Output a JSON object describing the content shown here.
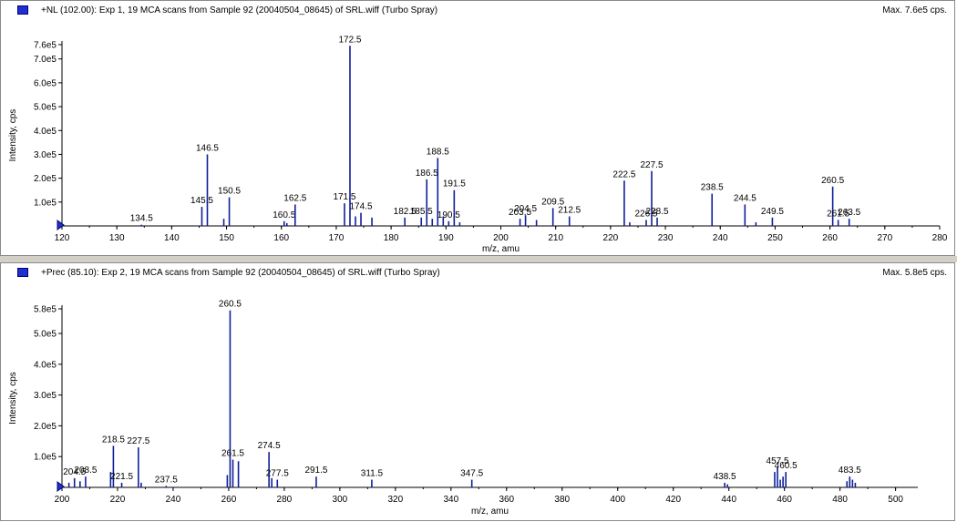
{
  "chart_data": [
    {
      "type": "bar",
      "title": "+NL (102.00): Exp 1, 19 MCA scans from Sample 92 (20040504_08645) of SRL.wiff (Turbo Spray)",
      "max_label": "Max. 7.6e5 cps.",
      "xlabel": "m/z, amu",
      "ylabel": "Intensity, cps",
      "xlim": [
        120,
        280
      ],
      "ylim": [
        0,
        760000
      ],
      "x_ticks": [
        120,
        130,
        140,
        150,
        160,
        170,
        180,
        190,
        200,
        210,
        220,
        230,
        240,
        250,
        260,
        270,
        280
      ],
      "y_ticks": [
        {
          "value": 100000,
          "label": "1.0e5"
        },
        {
          "value": 200000,
          "label": "2.0e5"
        },
        {
          "value": 300000,
          "label": "3.0e5"
        },
        {
          "value": 400000,
          "label": "4.0e5"
        },
        {
          "value": 500000,
          "label": "5.0e5"
        },
        {
          "value": 600000,
          "label": "6.0e5"
        },
        {
          "value": 700000,
          "label": "7.0e5"
        },
        {
          "value": 760000,
          "label": "7.6e5"
        }
      ],
      "peaks": [
        {
          "x": 134.5,
          "y": 5000,
          "label": "134.5"
        },
        {
          "x": 145.5,
          "y": 80000,
          "label": "145.5"
        },
        {
          "x": 146.5,
          "y": 300000,
          "label": "146.5"
        },
        {
          "x": 149.5,
          "y": 30000
        },
        {
          "x": 150.5,
          "y": 120000,
          "label": "150.5"
        },
        {
          "x": 160.5,
          "y": 20000,
          "label": "160.5"
        },
        {
          "x": 161.0,
          "y": 12000
        },
        {
          "x": 162.5,
          "y": 90000,
          "label": "162.5"
        },
        {
          "x": 171.5,
          "y": 95000,
          "label": "171.5"
        },
        {
          "x": 172.5,
          "y": 755000,
          "label": "172.5"
        },
        {
          "x": 173.5,
          "y": 40000
        },
        {
          "x": 174.5,
          "y": 55000,
          "label": "174.5"
        },
        {
          "x": 176.5,
          "y": 35000
        },
        {
          "x": 182.5,
          "y": 35000,
          "label": "182.5"
        },
        {
          "x": 185.5,
          "y": 35000,
          "label": "185.5"
        },
        {
          "x": 186.5,
          "y": 195000,
          "label": "186.5"
        },
        {
          "x": 187.5,
          "y": 30000
        },
        {
          "x": 188.5,
          "y": 285000,
          "label": "188.5"
        },
        {
          "x": 189.5,
          "y": 40000
        },
        {
          "x": 190.5,
          "y": 20000,
          "label": "190.5"
        },
        {
          "x": 191.5,
          "y": 150000,
          "label": "191.5"
        },
        {
          "x": 192.5,
          "y": 15000
        },
        {
          "x": 203.5,
          "y": 30000,
          "label": "203.5"
        },
        {
          "x": 204.5,
          "y": 45000,
          "label": "204.5"
        },
        {
          "x": 206.5,
          "y": 25000
        },
        {
          "x": 209.5,
          "y": 75000,
          "label": "209.5"
        },
        {
          "x": 212.5,
          "y": 40000,
          "label": "212.5"
        },
        {
          "x": 222.5,
          "y": 190000,
          "label": "222.5"
        },
        {
          "x": 223.5,
          "y": 15000
        },
        {
          "x": 226.5,
          "y": 25000,
          "label": "226.5"
        },
        {
          "x": 227.5,
          "y": 230000,
          "label": "227.5"
        },
        {
          "x": 228.5,
          "y": 35000,
          "label": "228.5"
        },
        {
          "x": 238.5,
          "y": 135000,
          "label": "238.5"
        },
        {
          "x": 244.5,
          "y": 90000,
          "label": "244.5"
        },
        {
          "x": 246.5,
          "y": 15000
        },
        {
          "x": 249.5,
          "y": 35000,
          "label": "249.5"
        },
        {
          "x": 260.5,
          "y": 165000,
          "label": "260.5"
        },
        {
          "x": 261.5,
          "y": 25000,
          "label": "261.5"
        },
        {
          "x": 263.5,
          "y": 30000,
          "label": "263.5"
        }
      ]
    },
    {
      "type": "bar",
      "title": "+Prec (85.10): Exp 2, 19 MCA scans from Sample 92 (20040504_08645) of SRL.wiff (Turbo Spray)",
      "max_label": "Max. 5.8e5 cps.",
      "xlabel": "m/z, amu",
      "ylabel": "Intensity, cps",
      "xlim": [
        200,
        508
      ],
      "ylim": [
        0,
        580000
      ],
      "x_ticks": [
        200,
        220,
        240,
        260,
        280,
        300,
        320,
        340,
        360,
        380,
        400,
        420,
        440,
        460,
        480,
        500
      ],
      "y_ticks": [
        {
          "value": 100000,
          "label": "1.0e5"
        },
        {
          "value": 200000,
          "label": "2.0e5"
        },
        {
          "value": 300000,
          "label": "3.0e5"
        },
        {
          "value": 400000,
          "label": "4.0e5"
        },
        {
          "value": 500000,
          "label": "5.0e5"
        },
        {
          "value": 580000,
          "label": "5.8e5"
        }
      ],
      "peaks": [
        {
          "x": 202.5,
          "y": 15000
        },
        {
          "x": 204.5,
          "y": 30000,
          "label": "204.5"
        },
        {
          "x": 206.5,
          "y": 20000
        },
        {
          "x": 208.5,
          "y": 35000,
          "label": "208.5"
        },
        {
          "x": 217.5,
          "y": 50000
        },
        {
          "x": 218.5,
          "y": 135000,
          "label": "218.5"
        },
        {
          "x": 221.5,
          "y": 15000,
          "label": "221.5"
        },
        {
          "x": 227.5,
          "y": 130000,
          "label": "227.5"
        },
        {
          "x": 228.5,
          "y": 15000
        },
        {
          "x": 237.5,
          "y": 5000,
          "label": "237.5"
        },
        {
          "x": 259.5,
          "y": 40000
        },
        {
          "x": 260.5,
          "y": 575000,
          "label": "260.5"
        },
        {
          "x": 261.5,
          "y": 90000,
          "label": "261.5"
        },
        {
          "x": 263.5,
          "y": 85000
        },
        {
          "x": 274.5,
          "y": 115000,
          "label": "274.5"
        },
        {
          "x": 275.5,
          "y": 30000
        },
        {
          "x": 277.5,
          "y": 25000,
          "label": "277.5"
        },
        {
          "x": 291.5,
          "y": 35000,
          "label": "291.5"
        },
        {
          "x": 311.5,
          "y": 25000,
          "label": "311.5"
        },
        {
          "x": 347.5,
          "y": 25000,
          "label": "347.5"
        },
        {
          "x": 438.5,
          "y": 15000,
          "label": "438.5"
        },
        {
          "x": 439.5,
          "y": 10000
        },
        {
          "x": 456.5,
          "y": 50000
        },
        {
          "x": 457.5,
          "y": 65000,
          "label": "457.5"
        },
        {
          "x": 458.5,
          "y": 25000
        },
        {
          "x": 459.5,
          "y": 35000
        },
        {
          "x": 460.5,
          "y": 50000,
          "label": "460.5"
        },
        {
          "x": 482.5,
          "y": 20000
        },
        {
          "x": 483.5,
          "y": 35000,
          "label": "483.5"
        },
        {
          "x": 484.5,
          "y": 25000
        },
        {
          "x": 485.5,
          "y": 15000
        }
      ]
    }
  ]
}
